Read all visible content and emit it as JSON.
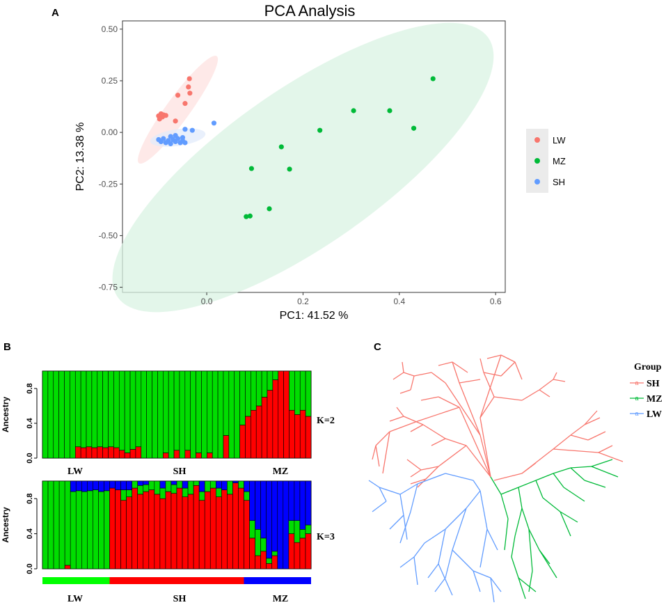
{
  "panels": {
    "a": "A",
    "b": "B",
    "c": "C"
  },
  "chart_data": [
    {
      "type": "scatter",
      "title": "PCA Analysis",
      "xlabel": "PC1: 41.52 %",
      "ylabel": "PC2: 13.38 %",
      "xlim": [
        -0.175,
        0.62
      ],
      "ylim": [
        -0.775,
        0.54
      ],
      "xticks": [
        0.0,
        0.2,
        0.4,
        0.6
      ],
      "xtick_labels": [
        "0.0",
        "0.2",
        "0.4",
        "0.6"
      ],
      "yticks": [
        0.5,
        0.25,
        0.0,
        -0.25,
        -0.5,
        -0.75
      ],
      "ytick_labels": [
        "0.50",
        "0.25",
        "0.00",
        "-0.25",
        "-0.50",
        "-0.75"
      ],
      "legend_position": "right",
      "series": [
        {
          "name": "LW",
          "color": "#f8766d",
          "points": [
            [
              -0.095,
              0.09
            ],
            [
              -0.1,
              0.08
            ],
            [
              -0.092,
              0.075
            ],
            [
              -0.098,
              0.065
            ],
            [
              -0.09,
              0.085
            ],
            [
              -0.085,
              0.082
            ],
            [
              -0.06,
              0.18
            ],
            [
              -0.045,
              0.14
            ],
            [
              -0.036,
              0.26
            ],
            [
              -0.038,
              0.22
            ],
            [
              -0.035,
              0.19
            ],
            [
              -0.065,
              0.055
            ]
          ]
        },
        {
          "name": "MZ",
          "color": "#00ba38",
          "points": [
            [
              0.47,
              0.26
            ],
            [
              0.38,
              0.105
            ],
            [
              0.305,
              0.105
            ],
            [
              0.43,
              0.02
            ],
            [
              0.235,
              0.01
            ],
            [
              0.155,
              -0.07
            ],
            [
              0.093,
              -0.175
            ],
            [
              0.172,
              -0.178
            ],
            [
              0.13,
              -0.37
            ],
            [
              0.082,
              -0.408
            ],
            [
              0.09,
              -0.405
            ]
          ]
        },
        {
          "name": "SH",
          "color": "#619cff",
          "points": [
            [
              0.015,
              0.045
            ],
            [
              -0.045,
              0.015
            ],
            [
              -0.03,
              0.01
            ],
            [
              -0.1,
              -0.035
            ],
            [
              -0.095,
              -0.045
            ],
            [
              -0.09,
              -0.03
            ],
            [
              -0.085,
              -0.05
            ],
            [
              -0.08,
              -0.04
            ],
            [
              -0.075,
              -0.055
            ],
            [
              -0.07,
              -0.035
            ],
            [
              -0.065,
              -0.045
            ],
            [
              -0.06,
              -0.03
            ],
            [
              -0.055,
              -0.05
            ],
            [
              -0.05,
              -0.04
            ],
            [
              -0.075,
              -0.02
            ],
            [
              -0.065,
              -0.015
            ],
            [
              -0.05,
              -0.025
            ],
            [
              -0.045,
              -0.05
            ]
          ]
        }
      ],
      "ellipses": [
        {
          "group": "LW",
          "center": [
            -0.06,
            0.11
          ],
          "semi_axes_px": [
            95,
            17
          ],
          "angle_deg": -54
        },
        {
          "group": "MZ",
          "center": [
            0.2,
            -0.17
          ],
          "semi_axes_px": [
            325,
            112
          ],
          "angle_deg": -35
        },
        {
          "group": "SH",
          "center": [
            -0.06,
            -0.025
          ],
          "semi_axes_px": [
            40,
            12
          ],
          "angle_deg": -8
        }
      ]
    },
    {
      "type": "stacked-bar",
      "title": "K=2",
      "ylabel": "Ancestry",
      "ylim": [
        0,
        1
      ],
      "yticks": [
        0.0,
        0.4,
        0.8
      ],
      "ytick_labels": [
        "0.0",
        "0.4",
        "0.8"
      ],
      "group_labels": [
        "LW",
        "SH",
        "MZ"
      ],
      "series": [
        {
          "name": "red",
          "color": "#ff0000",
          "values": [
            0,
            0,
            0,
            0,
            0,
            0,
            0.13,
            0.12,
            0.13,
            0.12,
            0.13,
            0.12,
            0.13,
            0.12,
            0.09,
            0.06,
            0.1,
            0.13,
            0,
            0,
            0,
            0,
            0.06,
            0,
            0.09,
            0,
            0.09,
            0,
            0.06,
            0,
            0.06,
            0,
            0,
            0.26,
            0,
            0,
            0.38,
            0.48,
            0.55,
            0.6,
            0.7,
            0.78,
            0.9,
            1,
            1,
            0.55,
            0.5,
            0.55,
            0.48
          ]
        },
        {
          "name": "green",
          "color": "#00dd00",
          "values": "complement"
        }
      ]
    },
    {
      "type": "stacked-bar",
      "title": "K=3",
      "ylabel": "Ancestry",
      "ylim": [
        0,
        1
      ],
      "yticks": [
        0.0,
        0.4,
        0.8
      ],
      "ytick_labels": [
        "0.0",
        "0.4",
        "0.8"
      ],
      "group_labels": [
        "LW",
        "SH",
        "MZ"
      ],
      "group_bar": [
        {
          "label": "LW",
          "color": "#00ff00",
          "bars": 12
        },
        {
          "label": "SH",
          "color": "#ff0000",
          "bars": 24
        },
        {
          "label": "MZ",
          "color": "#0000ff",
          "bars": 12
        }
      ],
      "bars": [
        [
          0,
          1,
          0
        ],
        [
          0,
          1,
          0
        ],
        [
          0,
          1,
          0
        ],
        [
          0,
          1,
          0
        ],
        [
          0.04,
          0.96,
          0
        ],
        [
          0,
          0.88,
          0.12
        ],
        [
          0,
          0.89,
          0.11
        ],
        [
          0,
          0.88,
          0.12
        ],
        [
          0,
          0.89,
          0.11
        ],
        [
          0,
          0.9,
          0.1
        ],
        [
          0,
          0.88,
          0.12
        ],
        [
          0,
          0.89,
          0.11
        ],
        [
          0.92,
          0,
          0.08
        ],
        [
          0.9,
          0,
          0.1
        ],
        [
          0.78,
          0.12,
          0.1
        ],
        [
          0.82,
          0.08,
          0.1
        ],
        [
          0.92,
          0.08,
          0
        ],
        [
          0.85,
          0.1,
          0.05
        ],
        [
          0.88,
          0.08,
          0.04
        ],
        [
          0.9,
          0.1,
          0
        ],
        [
          0.85,
          0.15,
          0
        ],
        [
          0.8,
          0.12,
          0.08
        ],
        [
          0.88,
          0.12,
          0
        ],
        [
          0.86,
          0.1,
          0.04
        ],
        [
          0.92,
          0.08,
          0
        ],
        [
          0.82,
          0.1,
          0.08
        ],
        [
          0.85,
          0.15,
          0
        ],
        [
          0.95,
          0.05,
          0
        ],
        [
          0.78,
          0.1,
          0.12
        ],
        [
          0.88,
          0.12,
          0
        ],
        [
          0.92,
          0.08,
          0
        ],
        [
          0.82,
          0.1,
          0.08
        ],
        [
          0.9,
          0,
          0.1
        ],
        [
          0.85,
          0.15,
          0
        ],
        [
          0.98,
          0,
          0.02
        ],
        [
          0.92,
          0.08,
          0
        ],
        [
          0.78,
          0.1,
          0.12
        ],
        [
          0.35,
          0.2,
          0.45
        ],
        [
          0.15,
          0.3,
          0.55
        ],
        [
          0.2,
          0.15,
          0.65
        ],
        [
          0.06,
          0.06,
          0.88
        ],
        [
          0.15,
          0.05,
          0.8
        ],
        [
          0,
          0,
          1
        ],
        [
          0,
          0,
          1
        ],
        [
          0.4,
          0.15,
          0.45
        ],
        [
          0.3,
          0.25,
          0.45
        ],
        [
          0.35,
          0.1,
          0.55
        ],
        [
          0.4,
          0.1,
          0.5
        ]
      ]
    },
    {
      "type": "tree",
      "title": "Group",
      "legend": [
        {
          "name": "SH",
          "color": "#f8766d"
        },
        {
          "name": "MZ",
          "color": "#00ba38"
        },
        {
          "name": "LW",
          "color": "#619cff"
        }
      ],
      "legend_marker": "a"
    }
  ]
}
